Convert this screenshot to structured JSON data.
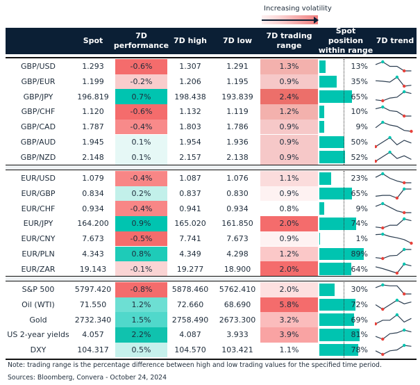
{
  "legend": {
    "label": "Increasing volatility"
  },
  "colors": {
    "header": "#0b1f35",
    "bar": "#00c4b0",
    "max_dot": "#00c4b0",
    "min_dot": "#e8413a",
    "line": "#2b3d50"
  },
  "header": {
    "spot": "Spot",
    "perf1": "7D",
    "perf2": "performance",
    "high": "7D high",
    "low": "7D low",
    "range1": "7D trading",
    "range2": "range",
    "pos1": "Spot position",
    "pos2": "within range",
    "trend": "7D trend"
  },
  "groups": [
    {
      "rows": [
        {
          "name": "GBP/USD",
          "spot": "1.293",
          "perf": "-0.6%",
          "perf_color": "#f46c6c",
          "high": "1.307",
          "low": "1.291",
          "range": "1.3%",
          "range_color": "#f3b1ad",
          "position": 13,
          "position_label": "13%",
          "trend": [
            0.7,
            1,
            0.5,
            0.5,
            0,
            0
          ]
        },
        {
          "name": "GBP/EUR",
          "spot": "1.199",
          "perf": "-0.2%",
          "perf_color": "#f9cccc",
          "high": "1.206",
          "low": "1.195",
          "range": "0.9%",
          "range_color": "#f6c8c8",
          "position": 35,
          "position_label": "35%",
          "trend": [
            0.6,
            0.55,
            0.45,
            1,
            0,
            0.1
          ]
        },
        {
          "name": "GBP/JPY",
          "spot": "196.819",
          "perf": "0.7%",
          "perf_color": "#00c4b0",
          "high": "198.438",
          "low": "193.839",
          "range": "2.4%",
          "range_color": "#ec6f6a",
          "position": 65,
          "position_label": "65%",
          "trend": [
            0.1,
            0,
            0.3,
            0.4,
            1,
            0.8
          ]
        },
        {
          "name": "GBP/CHF",
          "spot": "1.120",
          "perf": "-0.6%",
          "perf_color": "#f46c6c",
          "high": "1.132",
          "low": "1.119",
          "range": "1.2%",
          "range_color": "#f3b1ad",
          "position": 10,
          "position_label": "10%",
          "trend": [
            0.8,
            1,
            0.6,
            0.5,
            0,
            0
          ]
        },
        {
          "name": "GBP/CAD",
          "spot": "1.787",
          "perf": "-0.4%",
          "perf_color": "#f88a8a",
          "high": "1.803",
          "low": "1.786",
          "range": "0.9%",
          "range_color": "#f6c8c8",
          "position": 9,
          "position_label": "9%",
          "trend": [
            0.4,
            1,
            0.7,
            0.55,
            0.1,
            0
          ]
        },
        {
          "name": "GBP/AUD",
          "spot": "1.945",
          "perf": "0.1%",
          "perf_color": "#e6f8f6",
          "high": "1.954",
          "low": "1.936",
          "range": "0.9%",
          "range_color": "#f6c8c8",
          "position": 50,
          "position_label": "50%",
          "trend": [
            0,
            0.5,
            1,
            0.2,
            0.7,
            0.4
          ]
        },
        {
          "name": "GBP/NZD",
          "spot": "2.148",
          "perf": "0.1%",
          "perf_color": "#e6f8f6",
          "high": "2.157",
          "low": "2.138",
          "range": "0.9%",
          "range_color": "#f6c8c8",
          "position": 52,
          "position_label": "52%",
          "trend": [
            0,
            0.5,
            1,
            0.3,
            0.6,
            0.2
          ]
        }
      ]
    },
    {
      "rows": [
        {
          "name": "EUR/USD",
          "spot": "1.079",
          "perf": "-0.4%",
          "perf_color": "#f88686",
          "high": "1.087",
          "low": "1.076",
          "range": "1.1%",
          "range_color": "#fbdcdc",
          "position": 23,
          "position_label": "23%",
          "trend": [
            0.6,
            1,
            0.5,
            0.2,
            0,
            0
          ]
        },
        {
          "name": "EUR/GBP",
          "spot": "0.834",
          "perf": "0.2%",
          "perf_color": "#c2f0ea",
          "high": "0.837",
          "low": "0.830",
          "range": "0.9%",
          "range_color": "#fef2f2",
          "position": 65,
          "position_label": "65%",
          "trend": [
            0.2,
            0.3,
            0.3,
            0,
            1,
            1
          ]
        },
        {
          "name": "EUR/CHF",
          "spot": "0.934",
          "perf": "-0.4%",
          "perf_color": "#f88686",
          "high": "0.941",
          "low": "0.934",
          "range": "0.8%",
          "range_color": "#ffffff",
          "position": 9,
          "position_label": "9%",
          "trend": [
            0.7,
            1,
            0.6,
            0.2,
            0,
            0
          ]
        },
        {
          "name": "EUR/JPY",
          "spot": "164.200",
          "perf": "0.9%",
          "perf_color": "#00c4b0",
          "high": "165.020",
          "low": "161.850",
          "range": "2.0%",
          "range_color": "#f46c6c",
          "position": 74,
          "position_label": "74%",
          "trend": [
            0.1,
            0,
            0.3,
            0.3,
            1,
            0.8
          ]
        },
        {
          "name": "EUR/CNY",
          "spot": "7.673",
          "perf": "-0.5%",
          "perf_color": "#f46c6c",
          "high": "7.741",
          "low": "7.673",
          "range": "0.9%",
          "range_color": "#fef2f2",
          "position": 1,
          "position_label": "1%",
          "trend": [
            0.95,
            1,
            0.75,
            0.6,
            0.4,
            0
          ]
        },
        {
          "name": "EUR/PLN",
          "spot": "4.343",
          "perf": "0.8%",
          "perf_color": "#1ecbb8",
          "high": "4.349",
          "low": "4.298",
          "range": "1.2%",
          "range_color": "#fbc8c8",
          "position": 89,
          "position_label": "89%",
          "trend": [
            0.1,
            0,
            0.3,
            0.35,
            1,
            1
          ]
        },
        {
          "name": "EUR/ZAR",
          "spot": "19.143",
          "perf": "-0.1%",
          "perf_color": "#fad4d4",
          "high": "19.277",
          "low": "18.900",
          "range": "2.0%",
          "range_color": "#f46c6c",
          "position": 64,
          "position_label": "64%",
          "trend": [
            0.7,
            0.5,
            0.25,
            0,
            1,
            0.8
          ]
        }
      ]
    },
    {
      "rows": [
        {
          "name": "S&P 500",
          "spot": "5797.420",
          "perf": "-0.8%",
          "perf_color": "#f46c6c",
          "high": "5878.460",
          "low": "5762.410",
          "range": "2.0%",
          "range_color": "#fde0e0",
          "position": 30,
          "position_label": "30%",
          "trend": [
            0.7,
            1,
            0.9,
            0.9,
            0,
            0
          ]
        },
        {
          "name": "Oil (WTI)",
          "spot": "71.550",
          "perf": "1.2%",
          "perf_color": "#6ddfd3",
          "high": "72.660",
          "low": "68.690",
          "range": "5.8%",
          "range_color": "#f46c6c",
          "position": 72,
          "position_label": "72%",
          "trend": [
            0.5,
            0,
            0.5,
            1,
            0.6,
            0.8
          ]
        },
        {
          "name": "Gold",
          "spot": "2732.340",
          "perf": "1.5%",
          "perf_color": "#50d8cb",
          "high": "2758.490",
          "low": "2673.300",
          "range": "3.2%",
          "range_color": "#fbbcbc",
          "position": 69,
          "position_label": "69%",
          "trend": [
            0,
            0.4,
            0.4,
            1,
            0.2,
            0.6
          ]
        },
        {
          "name": "US 2-year yields",
          "spot": "4.057",
          "perf": "2.2%",
          "perf_color": "#10c2ae",
          "high": "4.087",
          "low": "3.933",
          "range": "3.9%",
          "range_color": "#f9a3a3",
          "position": 81,
          "position_label": "81%",
          "trend": [
            0.3,
            0,
            0.6,
            0.7,
            1,
            0.8
          ]
        },
        {
          "name": "DXY",
          "spot": "104.317",
          "perf": "0.5%",
          "perf_color": "#c6f1ec",
          "high": "104.570",
          "low": "103.421",
          "range": "1.1%",
          "range_color": "#ffffff",
          "position": 78,
          "position_label": "78%",
          "trend": [
            0.4,
            0,
            0.4,
            0.5,
            1,
            0.9
          ]
        }
      ]
    }
  ],
  "footer": {
    "note": "Note: trading range is the percentage difference between high and low trading values for the specified time period.",
    "sources": "Sources: Bloomberg, Convera - October 24, 2024"
  }
}
